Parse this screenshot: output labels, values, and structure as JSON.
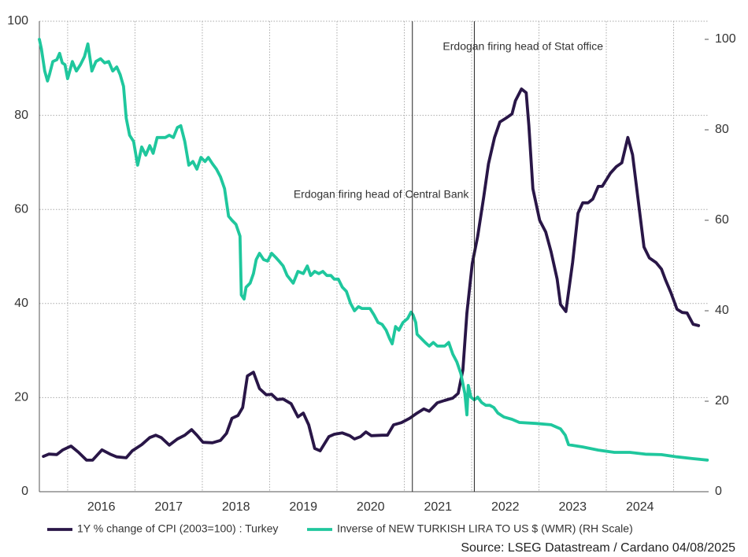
{
  "chart_data": {
    "type": "line",
    "source": "Source: LSEG Datastream / Cardano  04/08/2025",
    "xlim": [
      2015.58,
      2025.52
    ],
    "xticks": [
      {
        "value": 2016.5,
        "label": "2016"
      },
      {
        "value": 2017.5,
        "label": "2017"
      },
      {
        "value": 2018.5,
        "label": "2018"
      },
      {
        "value": 2019.5,
        "label": "2019"
      },
      {
        "value": 2020.5,
        "label": "2020"
      },
      {
        "value": 2021.5,
        "label": "2021"
      },
      {
        "value": 2022.5,
        "label": "2022"
      },
      {
        "value": 2023.5,
        "label": "2023"
      },
      {
        "value": 2024.5,
        "label": "2024"
      }
    ],
    "xgrid": [
      2016,
      2017,
      2018,
      2019,
      2020,
      2021,
      2022,
      2023,
      2024,
      2025
    ],
    "ylim": [
      0,
      100
    ],
    "yticks": [
      0,
      20,
      40,
      60,
      80,
      100
    ],
    "y2lim": [
      0,
      104
    ],
    "y2ticks": [
      0,
      20,
      40,
      60,
      80,
      100
    ],
    "grid": true,
    "legend": "bottom",
    "annotations": [
      {
        "text": "Erdogan firing head of Central Bank",
        "x": 2021.12
      },
      {
        "text": "Erdogan firing head of Stat office",
        "x": 2022.04
      }
    ],
    "series": [
      {
        "name": "1Y % change of CPI (2003=100) : Turkey",
        "color": "#291647",
        "axis": "y",
        "x": [
          2015.64,
          2015.72,
          2015.84,
          2015.93,
          2016.05,
          2016.16,
          2016.28,
          2016.37,
          2016.51,
          2016.63,
          2016.73,
          2016.87,
          2016.96,
          2017.1,
          2017.22,
          2017.31,
          2017.39,
          2017.51,
          2017.63,
          2017.74,
          2017.84,
          2017.92,
          2018.01,
          2018.15,
          2018.27,
          2018.36,
          2018.44,
          2018.53,
          2018.6,
          2018.67,
          2018.76,
          2018.85,
          2018.95,
          2019.03,
          2019.11,
          2019.2,
          2019.32,
          2019.42,
          2019.5,
          2019.58,
          2019.67,
          2019.75,
          2019.88,
          2019.96,
          2020.08,
          2020.19,
          2020.26,
          2020.35,
          2020.43,
          2020.51,
          2020.67,
          2020.75,
          2020.84,
          2020.96,
          2021.08,
          2021.19,
          2021.29,
          2021.37,
          2021.49,
          2021.6,
          2021.72,
          2021.8,
          2021.87,
          2021.93,
          2022.01,
          2022.09,
          2022.18,
          2022.25,
          2022.34,
          2022.42,
          2022.51,
          2022.6,
          2022.65,
          2022.74,
          2022.81,
          2022.85,
          2022.91,
          2023.01,
          2023.1,
          2023.18,
          2023.27,
          2023.32,
          2023.4,
          2023.5,
          2023.58,
          2023.65,
          2023.73,
          2023.8,
          2023.88,
          2023.94,
          2024.06,
          2024.15,
          2024.23,
          2024.32,
          2024.39,
          2024.47,
          2024.56,
          2024.64,
          2024.74,
          2024.82,
          2024.88,
          2024.96,
          2025.05,
          2025.13,
          2025.2,
          2025.29,
          2025.37
        ],
        "values": [
          7.5,
          8.0,
          7.9,
          8.9,
          9.7,
          8.4,
          6.7,
          6.7,
          8.9,
          8.0,
          7.4,
          7.2,
          8.7,
          10.0,
          11.5,
          12.0,
          11.5,
          9.9,
          11.2,
          12.0,
          13.2,
          12.0,
          10.5,
          10.4,
          10.9,
          12.4,
          15.6,
          16.2,
          17.9,
          24.6,
          25.4,
          21.9,
          20.6,
          20.7,
          19.6,
          19.7,
          18.7,
          15.9,
          16.7,
          14.2,
          9.2,
          8.7,
          11.7,
          12.2,
          12.5,
          11.9,
          11.2,
          11.7,
          12.7,
          11.9,
          12.0,
          12.0,
          14.2,
          14.7,
          15.6,
          16.7,
          17.6,
          17.1,
          18.9,
          19.4,
          19.9,
          20.9,
          25.9,
          38.0,
          48.5,
          54.3,
          62.7,
          69.7,
          75.3,
          78.6,
          79.4,
          80.3,
          83.1,
          85.6,
          84.8,
          77.8,
          64.4,
          57.7,
          55.2,
          51.0,
          45.2,
          39.8,
          38.3,
          48.8,
          59.2,
          61.4,
          61.4,
          62.2,
          64.9,
          64.9,
          67.7,
          69.1,
          69.9,
          75.3,
          71.6,
          62.4,
          52.0,
          49.7,
          48.7,
          47.3,
          45.0,
          42.3,
          38.8,
          38.1,
          38.0,
          35.6,
          35.3
        ]
      },
      {
        "name": "Inverse of NEW TURKISH LIRA TO US $ (WMR) (RH Scale)",
        "color": "#1fc79d",
        "axis": "y2",
        "x": [
          2015.58,
          2015.61,
          2015.66,
          2015.7,
          2015.73,
          2015.78,
          2015.84,
          2015.88,
          2015.92,
          2015.96,
          2016.0,
          2016.07,
          2016.13,
          2016.19,
          2016.25,
          2016.3,
          2016.36,
          2016.42,
          2016.49,
          2016.55,
          2016.61,
          2016.67,
          2016.73,
          2016.78,
          2016.83,
          2016.87,
          2016.92,
          2016.98,
          2017.04,
          2017.1,
          2017.16,
          2017.22,
          2017.27,
          2017.33,
          2017.39,
          2017.45,
          2017.51,
          2017.57,
          2017.63,
          2017.68,
          2017.74,
          2017.8,
          2017.86,
          2017.92,
          2017.98,
          2018.04,
          2018.09,
          2018.15,
          2018.21,
          2018.27,
          2018.33,
          2018.39,
          2018.44,
          2018.5,
          2018.56,
          2018.58,
          2018.62,
          2018.65,
          2018.71,
          2018.76,
          2018.8,
          2018.85,
          2018.91,
          2018.97,
          2019.03,
          2019.09,
          2019.15,
          2019.2,
          2019.26,
          2019.35,
          2019.42,
          2019.5,
          2019.56,
          2019.61,
          2019.67,
          2019.73,
          2019.79,
          2019.85,
          2019.91,
          2019.96,
          2020.02,
          2020.08,
          2020.14,
          2020.2,
          2020.26,
          2020.32,
          2020.37,
          2020.49,
          2020.55,
          2020.61,
          2020.67,
          2020.73,
          2020.78,
          2020.82,
          2020.87,
          2020.92,
          2020.98,
          2021.05,
          2021.1,
          2021.13,
          2021.17,
          2021.19,
          2021.25,
          2021.31,
          2021.37,
          2021.43,
          2021.49,
          2021.6,
          2021.66,
          2021.72,
          2021.78,
          2021.84,
          2021.9,
          2021.93,
          2021.95,
          2021.99,
          2022.04,
          2022.09,
          2022.15,
          2022.21,
          2022.27,
          2022.33,
          2022.39,
          2022.48,
          2022.6,
          2022.71,
          2022.95,
          2023.18,
          2023.32,
          2023.39,
          2023.44,
          2023.65,
          2023.88,
          2024.12,
          2024.35,
          2024.58,
          2024.82,
          2025.05,
          2025.29,
          2025.5
        ],
        "values": [
          100.0,
          97.9,
          93.0,
          90.8,
          92.2,
          95.1,
          95.5,
          96.9,
          94.8,
          94.4,
          91.3,
          95.1,
          93.0,
          94.4,
          96.2,
          99.0,
          93.0,
          95.1,
          95.7,
          94.8,
          95.1,
          93.0,
          93.9,
          92.2,
          89.6,
          82.6,
          78.8,
          77.4,
          72.2,
          76.2,
          74.4,
          76.5,
          74.8,
          78.3,
          78.3,
          78.3,
          78.8,
          78.3,
          80.5,
          80.9,
          77.4,
          72.2,
          73.0,
          71.3,
          73.9,
          73.0,
          73.9,
          72.5,
          71.3,
          69.6,
          67.0,
          60.9,
          60.0,
          59.1,
          56.5,
          43.5,
          42.6,
          45.2,
          46.1,
          48.2,
          51.3,
          52.7,
          51.3,
          51.0,
          52.7,
          51.8,
          50.8,
          49.9,
          47.8,
          46.1,
          48.7,
          48.2,
          49.9,
          47.8,
          48.7,
          48.2,
          48.7,
          47.8,
          47.8,
          47.0,
          47.0,
          45.2,
          44.3,
          41.7,
          40.0,
          40.9,
          40.5,
          40.5,
          39.1,
          37.4,
          37.0,
          35.7,
          33.9,
          32.7,
          36.5,
          35.7,
          37.4,
          38.3,
          39.7,
          39.1,
          37.4,
          34.8,
          33.9,
          33.0,
          32.2,
          33.0,
          32.2,
          32.2,
          33.0,
          30.4,
          28.7,
          26.1,
          21.7,
          17.0,
          23.5,
          20.9,
          20.3,
          20.9,
          19.7,
          19.1,
          19.1,
          18.6,
          17.4,
          16.5,
          16.0,
          15.3,
          15.1,
          14.8,
          13.9,
          12.5,
          10.4,
          9.9,
          9.2,
          8.7,
          8.7,
          8.3,
          8.2,
          7.7,
          7.3,
          7.0
        ]
      }
    ]
  }
}
